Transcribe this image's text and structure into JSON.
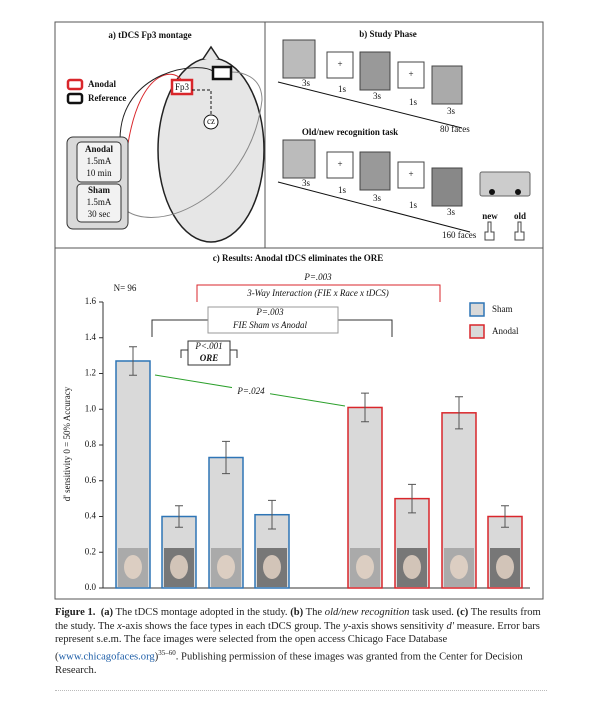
{
  "panel_a": {
    "title": "a) tDCS Fp3 montage",
    "legend": [
      "Anodal",
      "Reference"
    ],
    "electrode": "Fp3",
    "reference_point": "cz",
    "stimulator": {
      "anodal": [
        "Anodal",
        "1.5mA",
        "10 min"
      ],
      "sham": [
        "Sham",
        "1.5mA",
        "30 sec"
      ]
    }
  },
  "panel_b": {
    "title": "b) Study Phase",
    "study_durations": [
      "3s",
      "1s",
      "3s",
      "1s",
      "3s"
    ],
    "study_count": "80 faces",
    "recognition_title": "Old/new recognition task",
    "recognition_durations": [
      "3s",
      "1s",
      "3s",
      "1s",
      "3s"
    ],
    "recognition_count": "160 faces",
    "keys": [
      "new",
      "old"
    ]
  },
  "chart_data": {
    "type": "bar",
    "title": "c) Results:  Anodal tDCS eliminates the ORE",
    "y_label": "d' sensitivity 0 = 50% Accuracy",
    "n_label": "N= 96",
    "categories": [
      null,
      null,
      null,
      null,
      null,
      null,
      null,
      null
    ],
    "series": [
      {
        "name": "Sham",
        "color": "#2e75b6",
        "values": [
          1.27,
          0.4,
          0.73,
          0.41,
          null,
          null,
          null,
          null
        ],
        "errors": [
          0.08,
          0.06,
          0.09,
          0.08,
          null,
          null,
          null,
          null
        ]
      },
      {
        "name": "Anodal",
        "color": "#d9262b",
        "values": [
          null,
          null,
          null,
          null,
          1.01,
          0.5,
          0.98,
          0.4
        ],
        "errors": [
          null,
          null,
          null,
          null,
          0.08,
          0.08,
          0.09,
          0.06
        ]
      }
    ],
    "ylim": [
      0,
      1.6
    ],
    "yticks": [
      {
        "value": 0,
        "label": "0.0"
      },
      0.2,
      0.4,
      0.6,
      0.8,
      {
        "value": 1,
        "label": "1.0"
      },
      1.2,
      1.4,
      1.6
    ],
    "legend": "upper right",
    "brackets": [
      {
        "p": "P=.003",
        "label": "3-Way Interaction (FIE x Race x tDCS)"
      },
      {
        "p": "P=.003",
        "label": "FIE Sham vs Anodal"
      },
      {
        "p": "P<.001",
        "label": "ORE"
      },
      {
        "p": "P=.024"
      }
    ]
  },
  "caption": [
    "Figure 1.",
    "(a)",
    "The tDCS montage adopted in the study.",
    "(b)",
    "The",
    "old/new recognition",
    "task used.",
    "(c)",
    "The results from the study. The",
    "x",
    "-axis shows the face types in each tDCS group. The",
    "y",
    "-axis shows sensitivity",
    "d'",
    "measure. Error bars represent s.e.m. The face images were selected from the open access Chicago Face Database (",
    "www.chicagofaces.org",
    ")",
    "35–60",
    ". Publishing permission of these images was granted from the Center for Decision Research."
  ]
}
